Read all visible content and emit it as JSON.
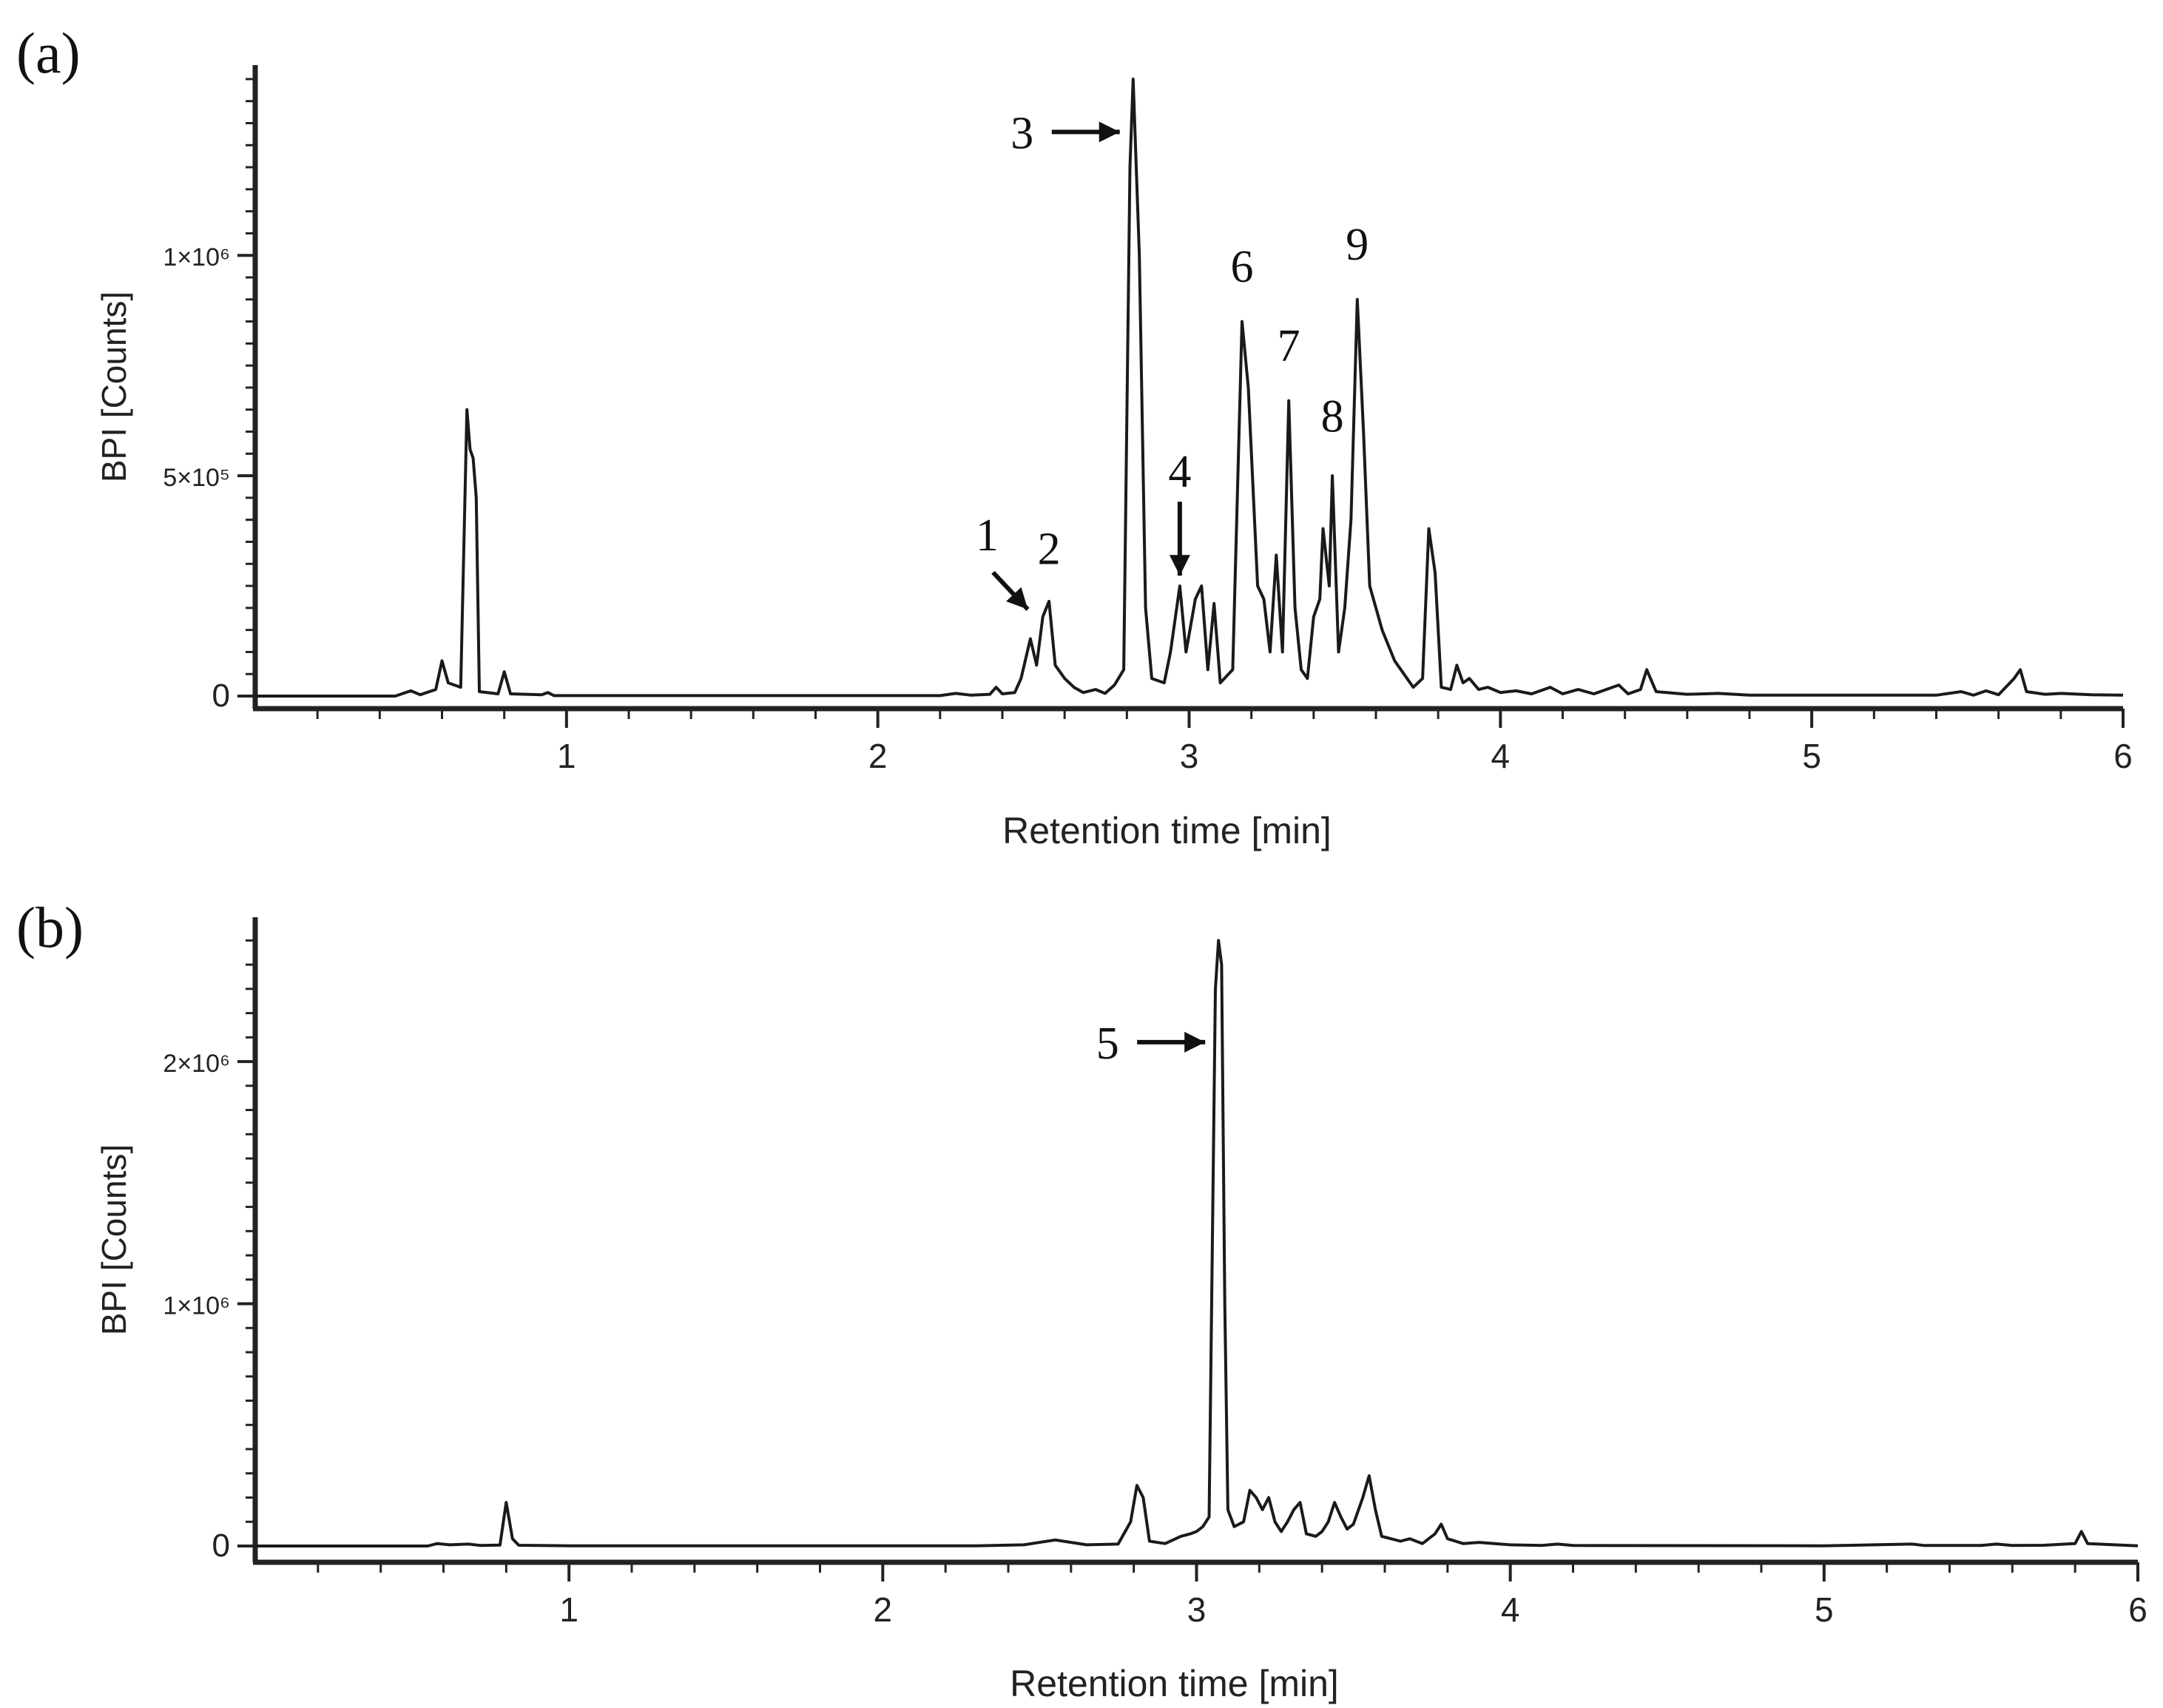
{
  "colors": {
    "trace": "#1a1a1a",
    "axis": "#222222",
    "background": "#ffffff"
  },
  "chart_data": [
    {
      "panel": "(a)",
      "type": "line",
      "xlabel": "Retention time [min]",
      "ylabel": "BPI [Counts]",
      "xlim": [
        0,
        6
      ],
      "ylim": [
        0,
        1420000
      ],
      "x_ticks": [
        1,
        2,
        3,
        4,
        5,
        6
      ],
      "x_tick_labels": [
        "1",
        "2",
        "3",
        "4",
        "5",
        "6"
      ],
      "y_ticks": [
        0,
        500000,
        1000000
      ],
      "y_tick_labels": [
        "0",
        "5×10⁵",
        "1×10⁶"
      ],
      "grid": false,
      "series": [
        {
          "values": [
            [
              0.0,
              0
            ],
            [
              0.45,
              0
            ],
            [
              0.5,
              12000
            ],
            [
              0.53,
              3000
            ],
            [
              0.58,
              15000
            ],
            [
              0.6,
              80000
            ],
            [
              0.62,
              30000
            ],
            [
              0.66,
              20000
            ],
            [
              0.68,
              650000
            ],
            [
              0.69,
              560000
            ],
            [
              0.7,
              540000
            ],
            [
              0.71,
              450000
            ],
            [
              0.72,
              10000
            ],
            [
              0.78,
              5000
            ],
            [
              0.8,
              55000
            ],
            [
              0.82,
              5000
            ],
            [
              0.92,
              3000
            ],
            [
              0.94,
              8000
            ],
            [
              0.96,
              1000
            ],
            [
              2.2,
              1000
            ],
            [
              2.25,
              6000
            ],
            [
              2.3,
              2000
            ],
            [
              2.36,
              4000
            ],
            [
              2.38,
              20000
            ],
            [
              2.4,
              5000
            ],
            [
              2.44,
              8000
            ],
            [
              2.46,
              40000
            ],
            [
              2.49,
              130000
            ],
            [
              2.51,
              70000
            ],
            [
              2.53,
              180000
            ],
            [
              2.55,
              215000
            ],
            [
              2.57,
              70000
            ],
            [
              2.6,
              40000
            ],
            [
              2.63,
              20000
            ],
            [
              2.66,
              8000
            ],
            [
              2.7,
              15000
            ],
            [
              2.73,
              6000
            ],
            [
              2.76,
              25000
            ],
            [
              2.79,
              60000
            ],
            [
              2.81,
              1200000
            ],
            [
              2.82,
              1400000
            ],
            [
              2.84,
              1000000
            ],
            [
              2.86,
              200000
            ],
            [
              2.88,
              40000
            ],
            [
              2.92,
              30000
            ],
            [
              2.94,
              100000
            ],
            [
              2.97,
              250000
            ],
            [
              2.99,
              100000
            ],
            [
              3.02,
              220000
            ],
            [
              3.04,
              250000
            ],
            [
              3.06,
              60000
            ],
            [
              3.08,
              210000
            ],
            [
              3.1,
              30000
            ],
            [
              3.14,
              60000
            ],
            [
              3.17,
              850000
            ],
            [
              3.19,
              700000
            ],
            [
              3.22,
              250000
            ],
            [
              3.24,
              220000
            ],
            [
              3.26,
              100000
            ],
            [
              3.28,
              320000
            ],
            [
              3.3,
              100000
            ],
            [
              3.32,
              670000
            ],
            [
              3.34,
              200000
            ],
            [
              3.36,
              60000
            ],
            [
              3.38,
              40000
            ],
            [
              3.4,
              180000
            ],
            [
              3.42,
              220000
            ],
            [
              3.43,
              380000
            ],
            [
              3.45,
              250000
            ],
            [
              3.46,
              500000
            ],
            [
              3.48,
              100000
            ],
            [
              3.5,
              200000
            ],
            [
              3.52,
              400000
            ],
            [
              3.54,
              900000
            ],
            [
              3.56,
              600000
            ],
            [
              3.58,
              250000
            ],
            [
              3.62,
              150000
            ],
            [
              3.66,
              80000
            ],
            [
              3.7,
              40000
            ],
            [
              3.72,
              20000
            ],
            [
              3.75,
              40000
            ],
            [
              3.77,
              380000
            ],
            [
              3.79,
              280000
            ],
            [
              3.81,
              20000
            ],
            [
              3.84,
              15000
            ],
            [
              3.86,
              70000
            ],
            [
              3.88,
              30000
            ],
            [
              3.9,
              40000
            ],
            [
              3.93,
              15000
            ],
            [
              3.96,
              20000
            ],
            [
              4.0,
              8000
            ],
            [
              4.05,
              12000
            ],
            [
              4.1,
              5000
            ],
            [
              4.16,
              20000
            ],
            [
              4.2,
              5000
            ],
            [
              4.25,
              15000
            ],
            [
              4.3,
              5000
            ],
            [
              4.38,
              25000
            ],
            [
              4.41,
              5000
            ],
            [
              4.45,
              15000
            ],
            [
              4.47,
              60000
            ],
            [
              4.5,
              10000
            ],
            [
              4.6,
              4000
            ],
            [
              4.7,
              6000
            ],
            [
              4.8,
              2000
            ],
            [
              5.0,
              2000
            ],
            [
              5.4,
              2000
            ],
            [
              5.48,
              10000
            ],
            [
              5.52,
              2000
            ],
            [
              5.56,
              12000
            ],
            [
              5.6,
              3000
            ],
            [
              5.65,
              40000
            ],
            [
              5.67,
              60000
            ],
            [
              5.69,
              10000
            ],
            [
              5.75,
              4000
            ],
            [
              5.8,
              6000
            ],
            [
              5.9,
              3000
            ],
            [
              6.0,
              2000
            ]
          ]
        }
      ],
      "annotations": [
        {
          "text": "1",
          "x": 2.47,
          "y": 180000,
          "arrow": "diagonal"
        },
        {
          "text": "2",
          "x": 2.55,
          "y": 300000,
          "arrow": "none"
        },
        {
          "text": "3",
          "x": 2.82,
          "y": 1280000,
          "arrow": "right"
        },
        {
          "text": "4",
          "x": 2.97,
          "y": 290000,
          "arrow": "down"
        },
        {
          "text": "6",
          "x": 3.17,
          "y": 940000,
          "arrow": "none"
        },
        {
          "text": "7",
          "x": 3.32,
          "y": 760000,
          "arrow": "none"
        },
        {
          "text": "8",
          "x": 3.46,
          "y": 600000,
          "arrow": "none"
        },
        {
          "text": "9",
          "x": 3.54,
          "y": 990000,
          "arrow": "none"
        }
      ]
    },
    {
      "panel": "(b)",
      "type": "line",
      "xlabel": "Retention time [min]",
      "ylabel": "BPI [Counts]",
      "xlim": [
        0,
        6
      ],
      "ylim": [
        0,
        2550000
      ],
      "x_ticks": [
        1,
        2,
        3,
        4,
        5,
        6
      ],
      "x_tick_labels": [
        "1",
        "2",
        "3",
        "4",
        "5",
        "6"
      ],
      "y_ticks": [
        0,
        1000000,
        2000000
      ],
      "y_tick_labels": [
        "0",
        "1×10⁶",
        "2×10⁶"
      ],
      "grid": false,
      "series": [
        {
          "values": [
            [
              0.0,
              0
            ],
            [
              0.55,
              0
            ],
            [
              0.58,
              10000
            ],
            [
              0.62,
              5000
            ],
            [
              0.68,
              8000
            ],
            [
              0.72,
              2000
            ],
            [
              0.78,
              4000
            ],
            [
              0.8,
              180000
            ],
            [
              0.82,
              30000
            ],
            [
              0.84,
              3000
            ],
            [
              1.0,
              1000
            ],
            [
              2.3,
              1000
            ],
            [
              2.45,
              5000
            ],
            [
              2.55,
              25000
            ],
            [
              2.6,
              15000
            ],
            [
              2.65,
              5000
            ],
            [
              2.75,
              8000
            ],
            [
              2.79,
              100000
            ],
            [
              2.81,
              250000
            ],
            [
              2.83,
              200000
            ],
            [
              2.85,
              20000
            ],
            [
              2.9,
              10000
            ],
            [
              2.95,
              40000
            ],
            [
              2.98,
              50000
            ],
            [
              3.0,
              60000
            ],
            [
              3.02,
              80000
            ],
            [
              3.04,
              120000
            ],
            [
              3.06,
              2300000
            ],
            [
              3.07,
              2500000
            ],
            [
              3.08,
              2400000
            ],
            [
              3.09,
              1000000
            ],
            [
              3.1,
              150000
            ],
            [
              3.12,
              80000
            ],
            [
              3.15,
              100000
            ],
            [
              3.17,
              230000
            ],
            [
              3.19,
              200000
            ],
            [
              3.21,
              150000
            ],
            [
              3.23,
              200000
            ],
            [
              3.25,
              100000
            ],
            [
              3.27,
              60000
            ],
            [
              3.29,
              100000
            ],
            [
              3.31,
              150000
            ],
            [
              3.33,
              180000
            ],
            [
              3.35,
              50000
            ],
            [
              3.38,
              40000
            ],
            [
              3.4,
              60000
            ],
            [
              3.42,
              100000
            ],
            [
              3.44,
              180000
            ],
            [
              3.46,
              120000
            ],
            [
              3.48,
              70000
            ],
            [
              3.5,
              90000
            ],
            [
              3.53,
              200000
            ],
            [
              3.55,
              290000
            ],
            [
              3.57,
              150000
            ],
            [
              3.59,
              40000
            ],
            [
              3.62,
              30000
            ],
            [
              3.65,
              20000
            ],
            [
              3.68,
              30000
            ],
            [
              3.72,
              10000
            ],
            [
              3.76,
              50000
            ],
            [
              3.78,
              90000
            ],
            [
              3.8,
              30000
            ],
            [
              3.85,
              10000
            ],
            [
              3.9,
              15000
            ],
            [
              3.95,
              10000
            ],
            [
              4.0,
              5000
            ],
            [
              4.1,
              2000
            ],
            [
              4.15,
              8000
            ],
            [
              4.2,
              2000
            ],
            [
              5.0,
              1000
            ],
            [
              5.28,
              8000
            ],
            [
              5.32,
              2000
            ],
            [
              5.5,
              2000
            ],
            [
              5.55,
              8000
            ],
            [
              5.6,
              2000
            ],
            [
              5.7,
              3000
            ],
            [
              5.8,
              10000
            ],
            [
              5.82,
              60000
            ],
            [
              5.84,
              10000
            ],
            [
              6.0,
              1000
            ]
          ]
        }
      ],
      "annotations": [
        {
          "text": "5",
          "x": 3.07,
          "y": 2080000,
          "arrow": "right"
        }
      ]
    }
  ]
}
